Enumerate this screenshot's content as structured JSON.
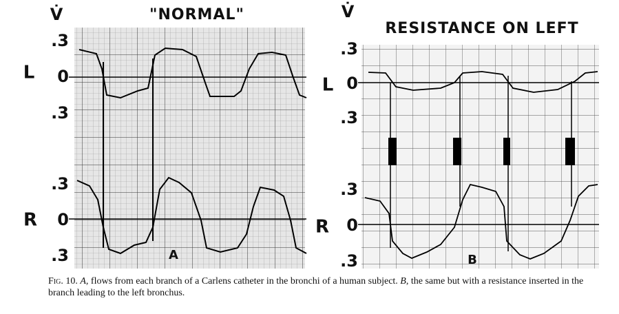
{
  "panels": [
    {
      "flow_symbol": "V̇",
      "title": "\"NORMAL\"",
      "upper_trace": {
        "name": "L",
        "ticks": [
          ".3",
          "0",
          ".3"
        ]
      },
      "lower_trace": {
        "name": "R",
        "ticks": [
          ".3",
          "0",
          ".3"
        ]
      },
      "letter": "A"
    },
    {
      "flow_symbol": "V̇",
      "title": "RESISTANCE ON LEFT",
      "upper_trace": {
        "name": "L",
        "ticks": [
          ".3",
          "0",
          ".3"
        ]
      },
      "lower_trace": {
        "name": "R",
        "ticks": [
          ".3",
          "0",
          ".3"
        ]
      },
      "letter": "B"
    }
  ],
  "caption": {
    "label": "Fig. 10.",
    "part_a": "A",
    "text_a": ", flows from each branch of a Carlens catheter in the bronchi of a human subject. ",
    "part_b": "B",
    "text_b": ", the same but with a resistance inserted in the branch leading to the left bronchus."
  }
}
